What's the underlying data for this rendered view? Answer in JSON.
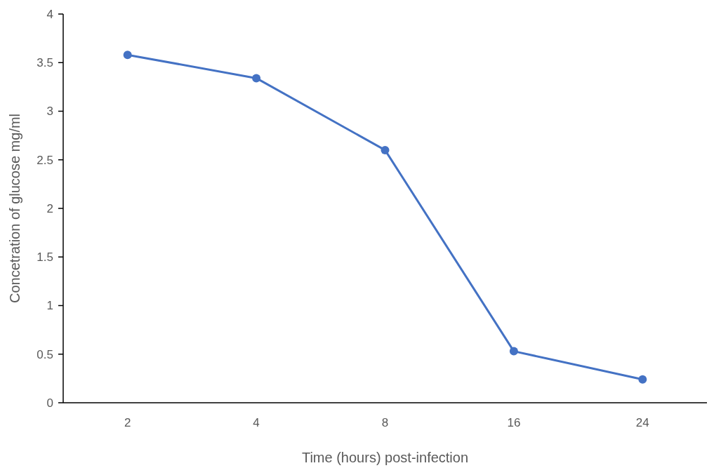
{
  "chart_data": {
    "type": "line",
    "xlabel": "Time (hours) post-infection",
    "ylabel": "Concetration of glucose mg/ml",
    "categories": [
      "2",
      "4",
      "8",
      "16",
      "24"
    ],
    "series": [
      {
        "color": "#4472c4",
        "values": [
          3.58,
          3.34,
          2.6,
          0.53,
          0.24
        ]
      }
    ],
    "ylim": [
      0,
      4
    ],
    "yticks": [
      0,
      0.5,
      1,
      1.5,
      2,
      2.5,
      3,
      3.5,
      4
    ],
    "grid": false,
    "marker": "circle",
    "line_style": "solid"
  }
}
